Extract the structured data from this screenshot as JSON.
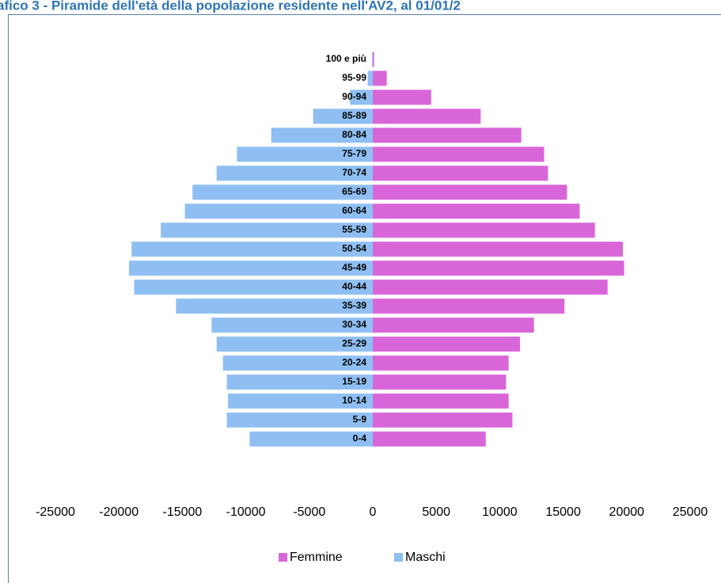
{
  "chart_data": {
    "type": "pyramid",
    "title": "afico 3 - Piramide dell'età della popolazione residente nell'AV2, al 01/01/2",
    "categories": [
      "100 e più",
      "95-99",
      "90-94",
      "85-89",
      "80-84",
      "75-79",
      "70-74",
      "65-69",
      "60-64",
      "55-59",
      "50-54",
      "45-49",
      "40-44",
      "35-39",
      "30-34",
      "25-29",
      "20-24",
      "15-19",
      "10-14",
      "5-9",
      "0-4"
    ],
    "series": [
      {
        "name": "Femmine",
        "color": "#d966d9",
        "values": [
          100,
          1100,
          4600,
          8500,
          11700,
          13500,
          13800,
          15300,
          16300,
          17500,
          19700,
          19800,
          18500,
          15100,
          12700,
          11600,
          10700,
          10500,
          10700,
          11000,
          8900
        ]
      },
      {
        "name": "Maschi",
        "color": "#8fbff2",
        "values": [
          -50,
          -400,
          -1800,
          -4700,
          -8000,
          -10700,
          -12300,
          -14200,
          -14800,
          -16700,
          -19000,
          -19200,
          -18800,
          -15500,
          -12700,
          -12300,
          -11800,
          -11500,
          -11400,
          -11500,
          -9700
        ]
      }
    ],
    "xlim": [
      -25000,
      25000
    ],
    "xticks": [
      -25000,
      -20000,
      -15000,
      -10000,
      -5000,
      0,
      5000,
      10000,
      15000,
      20000,
      25000
    ],
    "legend": "bottom"
  }
}
